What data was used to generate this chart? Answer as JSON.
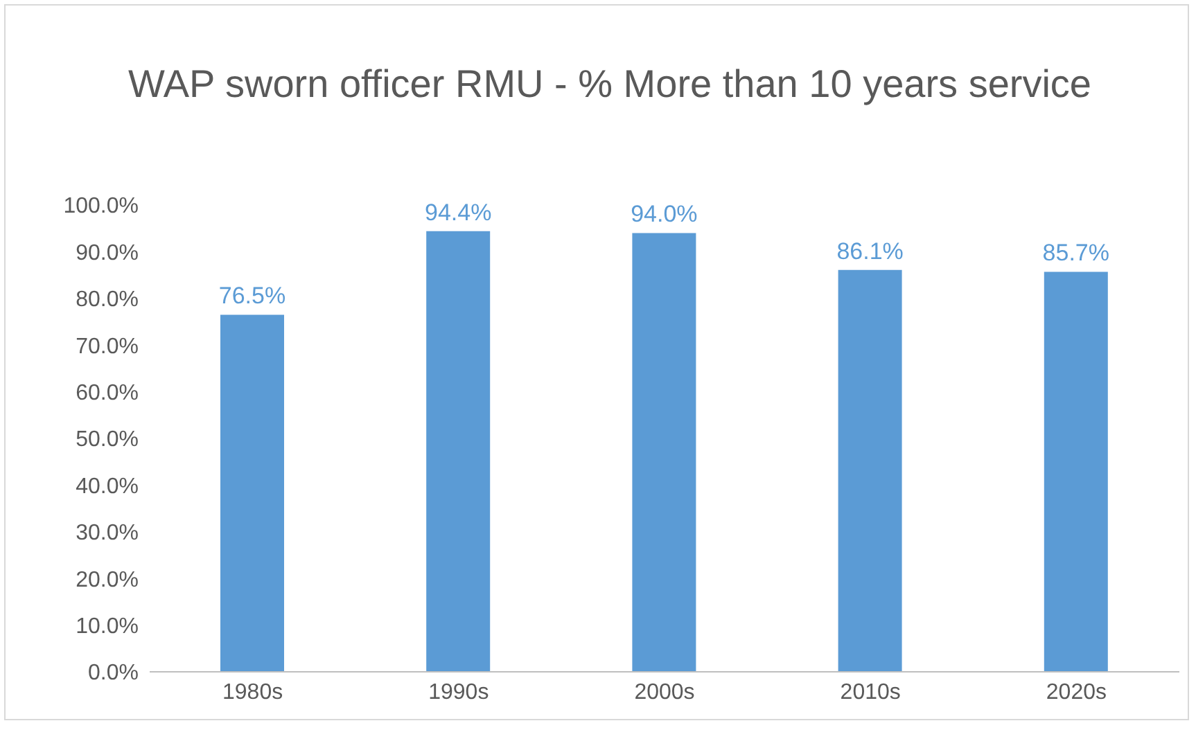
{
  "chart_data": {
    "type": "bar",
    "title": "WAP sworn officer RMU - % More than 10 years service",
    "categories": [
      "1980s",
      "1990s",
      "2000s",
      "2010s",
      "2020s"
    ],
    "values": [
      76.5,
      94.4,
      94.0,
      86.1,
      85.7
    ],
    "value_labels": [
      "76.5%",
      "94.4%",
      "94.0%",
      "86.1%",
      "85.7%"
    ],
    "color": "#5b9bd5",
    "ylim": [
      0,
      100
    ],
    "yticks": [
      {
        "value": 0,
        "label": "0.0%"
      },
      {
        "value": 10,
        "label": "10.0%"
      },
      {
        "value": 20,
        "label": "20.0%"
      },
      {
        "value": 30,
        "label": "30.0%"
      },
      {
        "value": 40,
        "label": "40.0%"
      },
      {
        "value": 50,
        "label": "50.0%"
      },
      {
        "value": 60,
        "label": "60.0%"
      },
      {
        "value": 70,
        "label": "70.0%"
      },
      {
        "value": 80,
        "label": "80.0%"
      },
      {
        "value": 90,
        "label": "90.0%"
      },
      {
        "value": 100,
        "label": "100.0%"
      }
    ],
    "grid": false,
    "legend": false
  }
}
